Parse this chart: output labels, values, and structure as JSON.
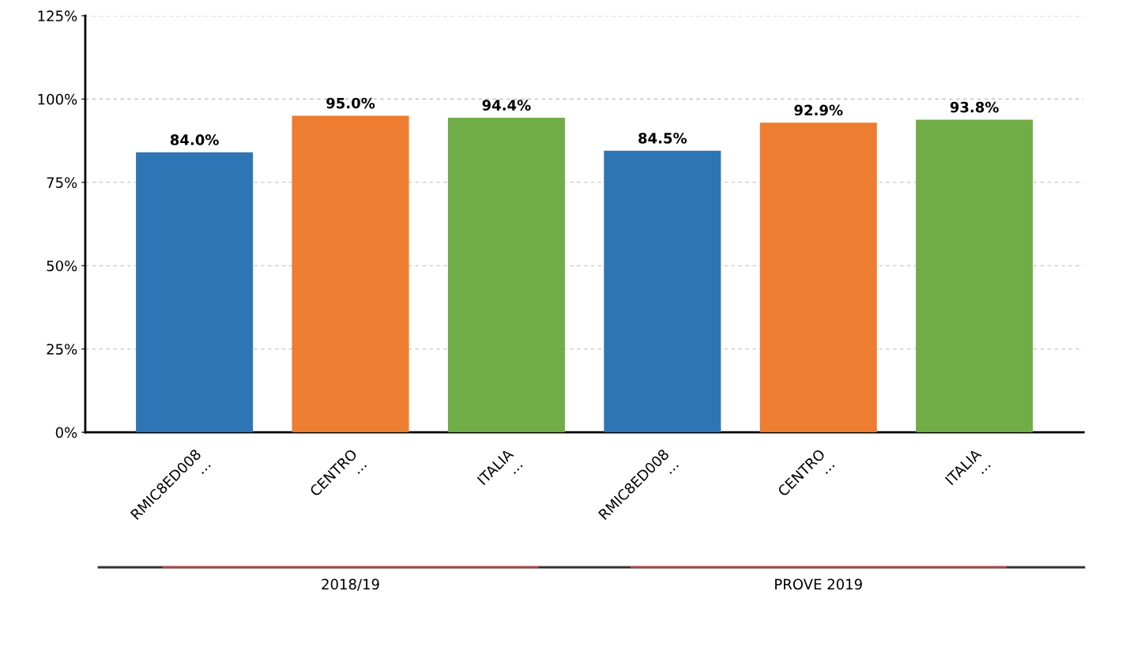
{
  "chart_data": {
    "type": "bar",
    "categories": [
      "RMIC8ED008\n…",
      "CENTRO\n…",
      "ITALIA\n…",
      "RMIC8ED008\n…",
      "CENTRO\n…",
      "ITALIA\n…"
    ],
    "values": [
      84.0,
      95.0,
      94.4,
      84.5,
      92.9,
      93.8
    ],
    "colors": [
      "#2e75b6",
      "#ed7d31",
      "#70ad47",
      "#2e75b6",
      "#ed7d31",
      "#70ad47"
    ],
    "value_labels": [
      "84.0%",
      "95.0%",
      "94.4%",
      "84.5%",
      "92.9%",
      "93.8%"
    ],
    "ylim": [
      0,
      125
    ],
    "yticks": [
      {
        "value": 0,
        "label": "0%"
      },
      {
        "value": 25,
        "label": "25%"
      },
      {
        "value": 50,
        "label": "50%"
      },
      {
        "value": 75,
        "label": "75%"
      },
      {
        "value": 100,
        "label": "100%"
      },
      {
        "value": 125,
        "label": "125%"
      }
    ],
    "grid": "y",
    "annotations": [
      "2018/19",
      "PROVE 2019"
    ]
  }
}
